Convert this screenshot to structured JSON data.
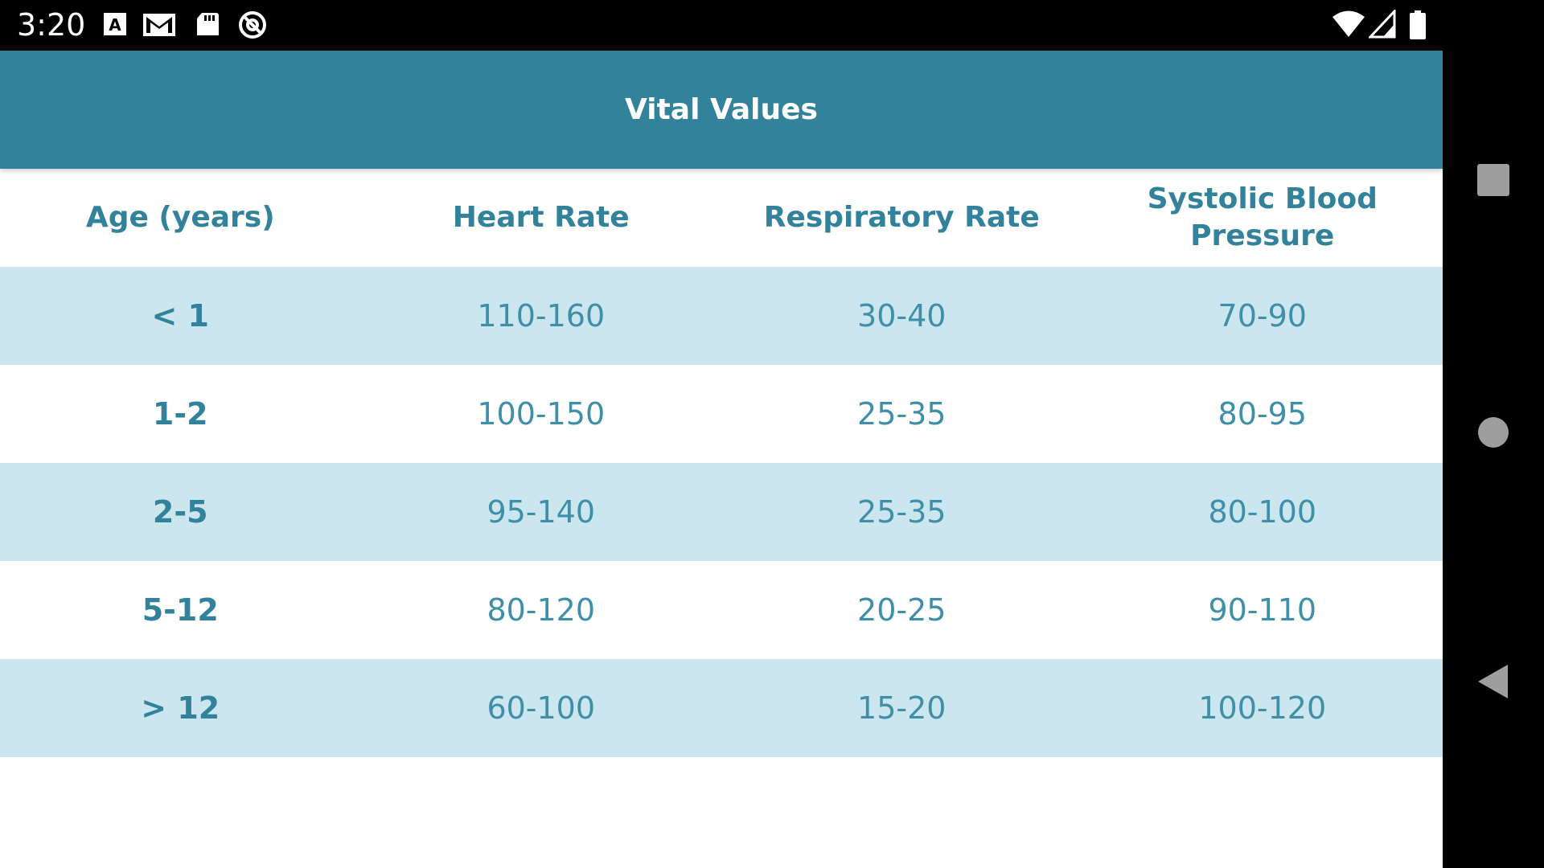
{
  "status_bar": {
    "time": "3:20",
    "icons": [
      "keyboard-a-icon",
      "gmail-icon",
      "sd-card-icon",
      "at-sign-icon"
    ],
    "right_icons": [
      "wifi-icon",
      "signal-icon",
      "battery-icon"
    ]
  },
  "toolbar": {
    "title": "Vital Values"
  },
  "table": {
    "headers": [
      "Age (years)",
      "Heart Rate",
      "Respiratory Rate",
      "Systolic Blood Pressure"
    ],
    "rows": [
      [
        "< 1",
        "110-160",
        "30-40",
        "70-90"
      ],
      [
        "1-2",
        "100-150",
        "25-35",
        "80-95"
      ],
      [
        "2-5",
        "95-140",
        "25-35",
        "80-100"
      ],
      [
        "5-12",
        "80-120",
        "20-25",
        "90-110"
      ],
      [
        "> 12",
        "60-100",
        "15-20",
        "100-120"
      ]
    ]
  },
  "navbar": {
    "buttons": [
      "recents-icon",
      "home-icon",
      "back-icon"
    ]
  },
  "colors": {
    "accent": "#33829c",
    "row_alt": "#cbe6ee",
    "text": "#33829c"
  }
}
